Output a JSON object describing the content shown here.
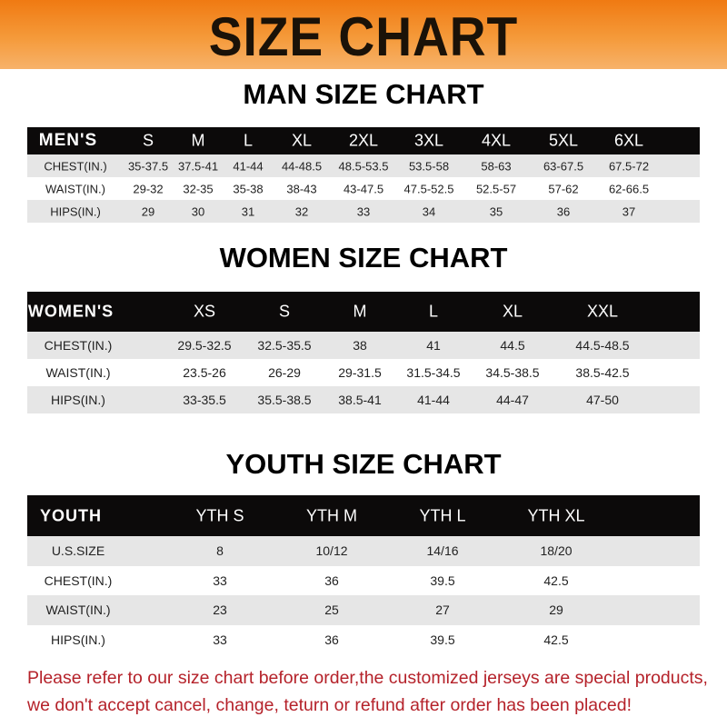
{
  "banner": {
    "title": "SIZE CHART",
    "color": "#f28a1e"
  },
  "men": {
    "title": "MAN SIZE CHART",
    "header": [
      "MEN'S",
      "S",
      "M",
      "L",
      "XL",
      "2XL",
      "3XL",
      "4XL",
      "5XL",
      "6XL"
    ],
    "rows": [
      [
        "CHEST(IN.)",
        "35-37.5",
        "37.5-41",
        "41-44",
        "44-48.5",
        "48.5-53.5",
        "53.5-58",
        "58-63",
        "63-67.5",
        "67.5-72"
      ],
      [
        "WAIST(IN.)",
        "29-32",
        "32-35",
        "35-38",
        "38-43",
        "43-47.5",
        "47.5-52.5",
        "52.5-57",
        "57-62",
        "62-66.5"
      ],
      [
        "HIPS(IN.)",
        "29",
        "30",
        "31",
        "32",
        "33",
        "34",
        "35",
        "36",
        "37"
      ]
    ]
  },
  "women": {
    "title": "WOMEN SIZE CHART",
    "header": [
      "WOMEN'S",
      "XS",
      "S",
      "M",
      "L",
      "XL",
      "XXL"
    ],
    "rows": [
      [
        "CHEST(IN.)",
        "29.5-32.5",
        "32.5-35.5",
        "38",
        "41",
        "44.5",
        "44.5-48.5"
      ],
      [
        "WAIST(IN.)",
        "23.5-26",
        "26-29",
        "29-31.5",
        "31.5-34.5",
        "34.5-38.5",
        "38.5-42.5"
      ],
      [
        "HIPS(IN.)",
        "33-35.5",
        "35.5-38.5",
        "38.5-41",
        "41-44",
        "44-47",
        "47-50"
      ]
    ]
  },
  "youth": {
    "title": "YOUTH SIZE CHART",
    "header": [
      "YOUTH",
      "YTH S",
      "YTH M",
      "YTH L",
      "YTH XL"
    ],
    "rows": [
      [
        "U.S.SIZE",
        "8",
        "10/12",
        "14/16",
        "18/20"
      ],
      [
        "CHEST(IN.)",
        "33",
        "36",
        "39.5",
        "42.5"
      ],
      [
        "WAIST(IN.)",
        "23",
        "25",
        "27",
        "29"
      ],
      [
        "HIPS(IN.)",
        "33",
        "36",
        "39.5",
        "42.5"
      ]
    ]
  },
  "footer": {
    "line1": "Please refer to our size chart before order,the customized jerseys are special products,",
    "line2": "we don't accept cancel, change, teturn or refund after order has been placed!",
    "color": "#b5222a"
  }
}
